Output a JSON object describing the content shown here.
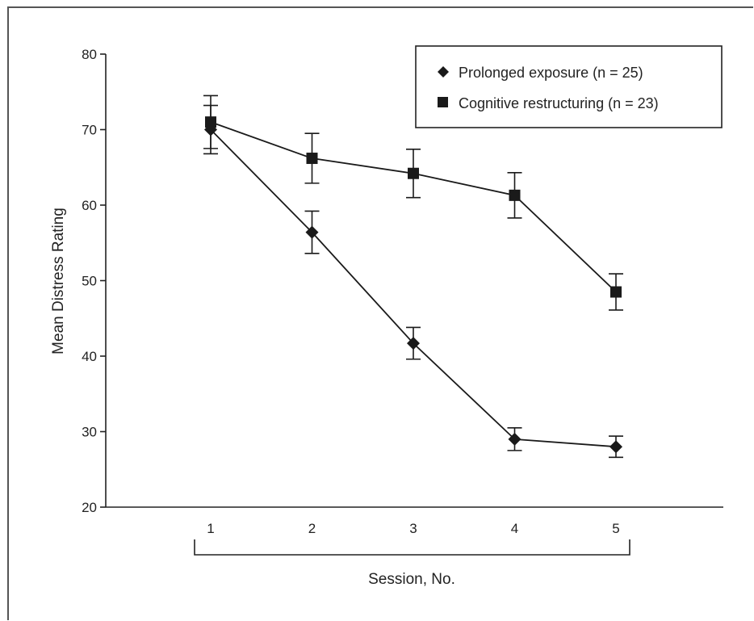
{
  "chart_data": {
    "type": "line",
    "title": "",
    "xlabel": "Session, No.",
    "ylabel": "Mean Distress Rating",
    "x": [
      1,
      2,
      3,
      4,
      5
    ],
    "xlim": [
      0,
      6
    ],
    "ylim": [
      20,
      80
    ],
    "yticks": [
      20,
      30,
      40,
      50,
      60,
      70,
      80
    ],
    "grid": false,
    "legend_position": "top-right",
    "series": [
      {
        "name": "Prolonged exposure (n = 25)",
        "marker": "diamond",
        "color": "#1a1a1a",
        "values": [
          70.0,
          56.4,
          41.7,
          29.0,
          28.0
        ],
        "error": [
          3.2,
          2.8,
          2.1,
          1.5,
          1.4
        ]
      },
      {
        "name": "Cognitive restructuring (n = 23)",
        "marker": "square",
        "color": "#1a1a1a",
        "values": [
          71.0,
          66.2,
          64.2,
          61.3,
          48.5
        ],
        "error": [
          3.5,
          3.3,
          3.2,
          3.0,
          2.4
        ]
      }
    ]
  }
}
